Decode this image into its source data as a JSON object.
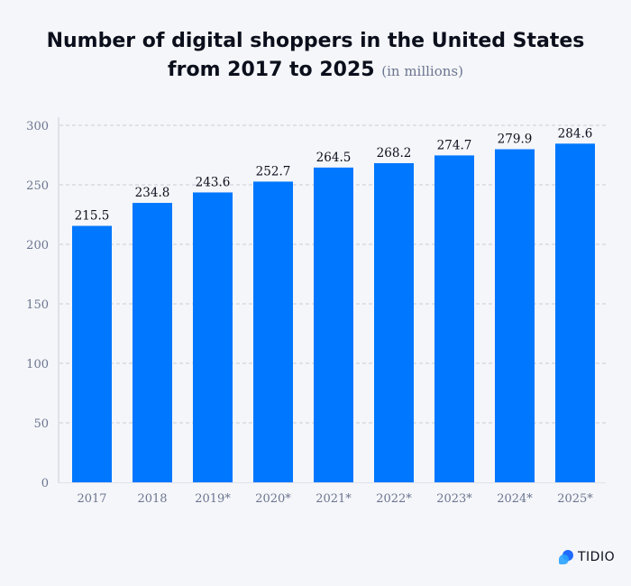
{
  "chart_data": {
    "type": "bar",
    "title": "Number of digital shoppers in the United States from 2017 to 2025",
    "subtitle": "(in millions)",
    "categories": [
      "2017",
      "2018",
      "2019*",
      "2020*",
      "2021*",
      "2022*",
      "2023*",
      "2024*",
      "2025*"
    ],
    "values": [
      215.5,
      234.8,
      243.6,
      252.7,
      264.5,
      268.2,
      274.7,
      279.9,
      284.6
    ],
    "data_labels": [
      "215.5",
      "234.8",
      "243.6",
      "252.7",
      "264.5",
      "268.2",
      "274.7",
      "279.9",
      "284.6"
    ],
    "ylim": [
      0,
      300
    ],
    "yticks": [
      0,
      50,
      100,
      150,
      200,
      250,
      300
    ],
    "grid": true,
    "xlabel": "",
    "ylabel": "",
    "bar_color": "#0077ff"
  },
  "title_line1": "Number of digital shoppers in the United States",
  "title_line2": "from 2017 to 2025",
  "subtitle": "(in millions)",
  "brand": {
    "name": "TIDIO"
  }
}
